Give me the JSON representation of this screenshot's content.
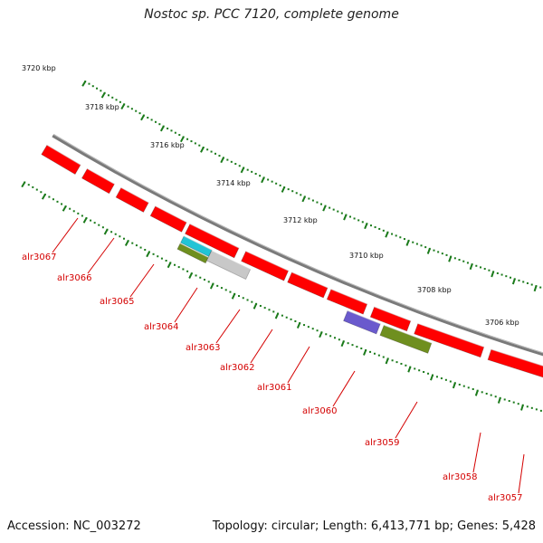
{
  "title": "Nostoc sp. PCC 7120, complete genome",
  "footer": {
    "accession": "Accession: NC_003272",
    "summary": "Topology: circular; Length: 6,413,771 bp; Genes: 5,428"
  },
  "colors": {
    "backbone": "#7a7a7a",
    "forward_gene": "#ff0000",
    "tick": "#1a7a1a",
    "label": "#d40000",
    "cyan_feature": "#22c4d6",
    "olive_feature": "#6f8f1f",
    "gray_feature": "#c8c8c8",
    "blue_feature": "#6a5acd"
  },
  "kbp_ticks": [
    "3720 kbp",
    "3718 kbp",
    "3716 kbp",
    "3714 kbp",
    "3712 kbp",
    "3710 kbp",
    "3708 kbp",
    "3706 kbp"
  ],
  "gene_labels": [
    "alr3067",
    "alr3066",
    "alr3065",
    "alr3064",
    "alr3063",
    "alr3062",
    "alr3061",
    "alr3060",
    "alr3059",
    "alr3058",
    "alr3057"
  ]
}
